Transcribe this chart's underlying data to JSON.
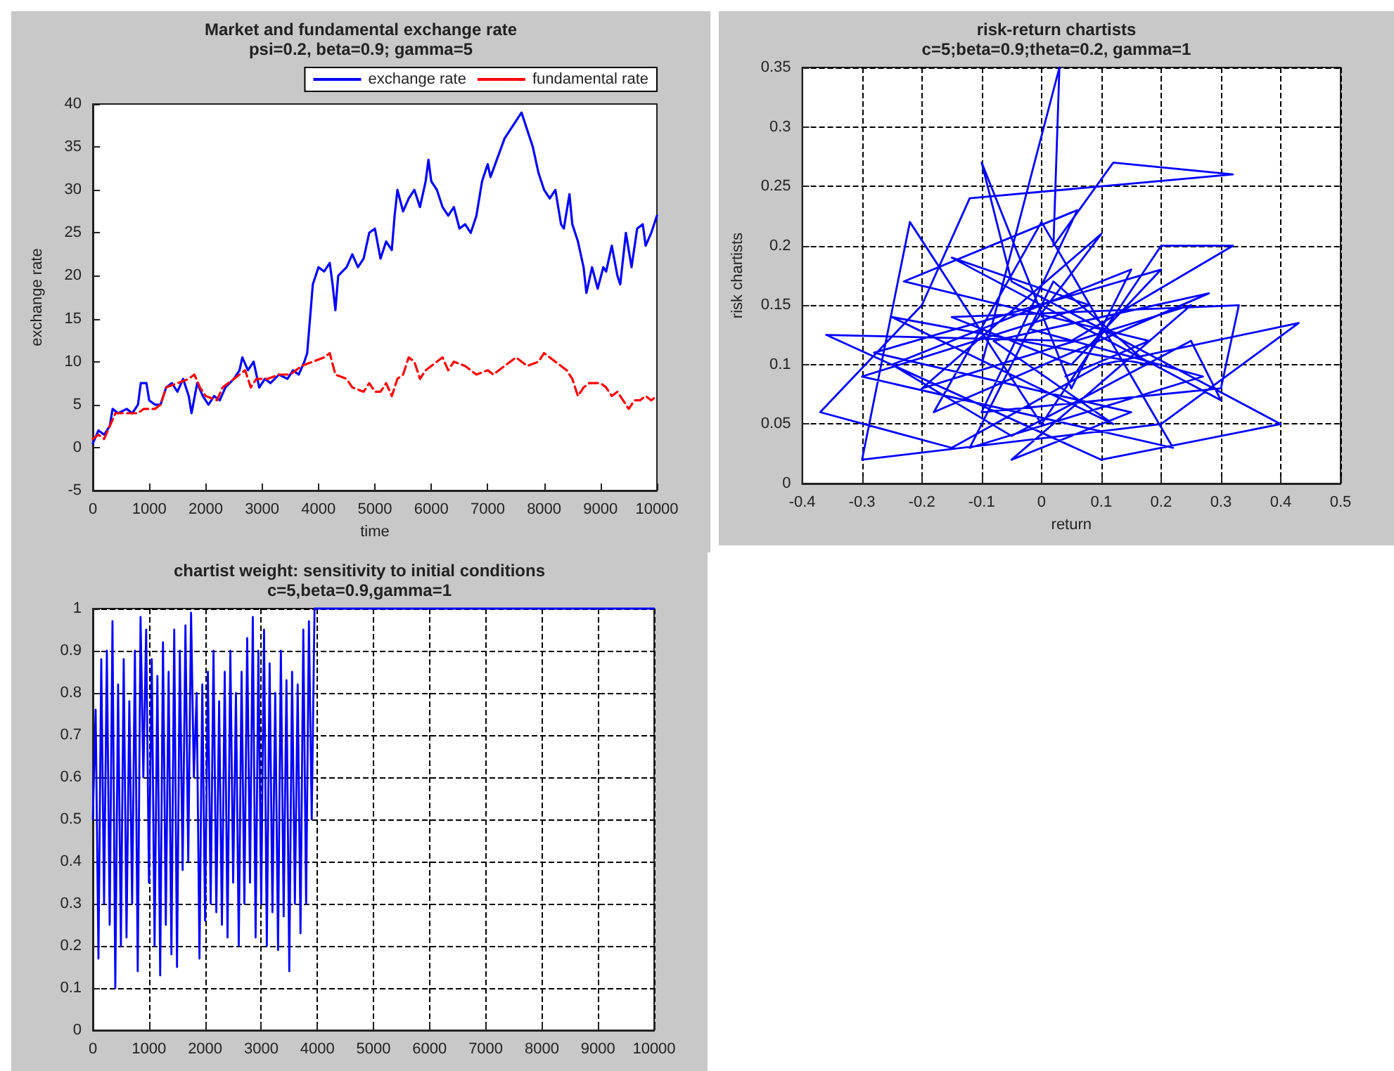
{
  "chart_data": [
    {
      "type": "line",
      "title": "Market and fundamental exchange rate",
      "subtitle": "psi=0.2, beta=0.9; gamma=5",
      "xlabel": "time",
      "ylabel": "exchange rate",
      "xlim": [
        0,
        10000
      ],
      "ylim": [
        -5,
        40
      ],
      "xticks": [
        0,
        1000,
        2000,
        3000,
        4000,
        5000,
        6000,
        7000,
        8000,
        9000,
        10000
      ],
      "yticks": [
        -5,
        0,
        5,
        10,
        15,
        20,
        25,
        30,
        35,
        40
      ],
      "legend": "top right",
      "marker": "none",
      "line_style": "solid",
      "series": [
        {
          "name": "exchange rate",
          "color": "#0000ff",
          "x": [
            0,
            100,
            200,
            300,
            350,
            450,
            600,
            700,
            800,
            850,
            950,
            1000,
            1100,
            1200,
            1300,
            1400,
            1500,
            1600,
            1700,
            1750,
            1850,
            1950,
            2050,
            2150,
            2250,
            2350,
            2500,
            2600,
            2650,
            2750,
            2850,
            2950,
            3050,
            3150,
            3300,
            3450,
            3550,
            3650,
            3750,
            3800,
            3850,
            3900,
            4000,
            4100,
            4200,
            4250,
            4300,
            4350,
            4500,
            4600,
            4700,
            4800,
            4900,
            5000,
            5100,
            5200,
            5300,
            5350,
            5400,
            5500,
            5600,
            5700,
            5800,
            5900,
            5950,
            6000,
            6100,
            6200,
            6300,
            6400,
            6500,
            6600,
            6700,
            6800,
            6900,
            7000,
            7050,
            7300,
            7600,
            7700,
            7800,
            7900,
            8000,
            8100,
            8200,
            8300,
            8350,
            8450,
            8500,
            8600,
            8700,
            8750,
            8850,
            8950,
            9050,
            9100,
            9200,
            9300,
            9350,
            9450,
            9550,
            9650,
            9750,
            9800,
            9900,
            10000
          ],
          "values": [
            0.5,
            2,
            1.5,
            2.5,
            4.5,
            4,
            4.5,
            4,
            5,
            7.5,
            7.5,
            5.5,
            5,
            5,
            7,
            7.5,
            6.5,
            8,
            6,
            4,
            7.5,
            6,
            5,
            6,
            5.5,
            7,
            8,
            9,
            10.5,
            9,
            10,
            7,
            8,
            7.5,
            8.5,
            8,
            9,
            8.5,
            10,
            11,
            15,
            19,
            21,
            20.5,
            21.5,
            19,
            16,
            20,
            21,
            22.5,
            21,
            22,
            25,
            25.5,
            22,
            24,
            23,
            27,
            30,
            27.5,
            29,
            30,
            28,
            31,
            33.5,
            31,
            30,
            28,
            27,
            28,
            25.5,
            26,
            25,
            27,
            31,
            33,
            31.5,
            36,
            39,
            37,
            35,
            32,
            30,
            29,
            30,
            26,
            25.5,
            29.5,
            26,
            24,
            21,
            18,
            21,
            18.5,
            21,
            20.5,
            23.5,
            20,
            19,
            25,
            21,
            25.5,
            26,
            23.5,
            25,
            27
          ]
        },
        {
          "name": "fundamental rate",
          "color": "#ff0000",
          "line_style": "dashed",
          "x": [
            0,
            100,
            200,
            300,
            400,
            600,
            800,
            900,
            1000,
            1100,
            1200,
            1300,
            1500,
            1700,
            1800,
            1900,
            2000,
            2200,
            2300,
            2500,
            2700,
            2800,
            2900,
            3100,
            3300,
            3500,
            3700,
            3900,
            4100,
            4200,
            4300,
            4500,
            4600,
            4800,
            4900,
            5000,
            5100,
            5200,
            5300,
            5400,
            5500,
            5600,
            5700,
            5800,
            5900,
            6000,
            6200,
            6300,
            6400,
            6600,
            6800,
            7000,
            7100,
            7300,
            7500,
            7700,
            7900,
            8000,
            8200,
            8400,
            8500,
            8600,
            8700,
            8800,
            9000,
            9100,
            9200,
            9300,
            9400,
            9500,
            9600,
            9700,
            9800,
            9900,
            10000
          ],
          "values": [
            1,
            1.5,
            1,
            2.5,
            4,
            4,
            4,
            4.5,
            4.5,
            4.5,
            5,
            7,
            7.5,
            8,
            8.5,
            7,
            6,
            5.5,
            7,
            8,
            9,
            7,
            8,
            8,
            8.5,
            8.5,
            9.5,
            10,
            10.5,
            11,
            8.5,
            8,
            7,
            6.5,
            7.5,
            6.5,
            6.5,
            7.5,
            6,
            8,
            8.5,
            10.5,
            10,
            8,
            9,
            9.5,
            10.5,
            9,
            10,
            9.5,
            8.5,
            9,
            8.5,
            9.5,
            10.5,
            9.5,
            10,
            11,
            10,
            9,
            8,
            6,
            7,
            7.5,
            7.5,
            7,
            6,
            6.5,
            5.5,
            4.5,
            5.5,
            5.5,
            6,
            5.5,
            6
          ]
        }
      ]
    },
    {
      "type": "line",
      "title": "risk-return chartists",
      "subtitle": "c=5;beta=0.9;theta=0.2, gamma=1",
      "xlabel": "return",
      "ylabel": "risk chartists",
      "xlim": [
        -0.4,
        0.5
      ],
      "ylim": [
        0,
        0.35
      ],
      "xticks": [
        -0.4,
        -0.3,
        -0.2,
        -0.1,
        0,
        0.1,
        0.2,
        0.3,
        0.4,
        0.5
      ],
      "yticks": [
        0,
        0.05,
        0.1,
        0.15,
        0.2,
        0.25,
        0.3,
        0.35
      ],
      "grid": true,
      "marker": "none",
      "line_style": "solid",
      "series": [
        {
          "color": "#0000ff",
          "x": [
            -0.1,
            0.03,
            0.02,
            0.12,
            0.32,
            -0.12,
            -0.2,
            -0.37,
            -0.15,
            0.1,
            0.43,
            0.2,
            -0.3,
            -0.22,
            0,
            0.2,
            0.32,
            0.05,
            -0.36,
            0.1,
            0.4,
            -0.05,
            -0.1,
            0.05,
            0.15,
            -0.25,
            -0.05,
            0.25,
            0.3,
            -0.15,
            0.08,
            -0.3,
            0.22,
            0,
            -0.18,
            0.28,
            -0.08,
            0.12,
            -0.25,
            0.18,
            0.02,
            -0.12,
            0.27,
            -0.02,
            0.1,
            -0.2,
            0.25,
            -0.05,
            0.15,
            -0.28,
            0.2,
            0.05,
            -0.15,
            0.33,
            0.3,
            -0.1,
            0.06,
            -0.23,
            0.18,
            0.04
          ],
          "values": [
            0.1,
            0.35,
            0.2,
            0.27,
            0.26,
            0.24,
            0.15,
            0.06,
            0.03,
            0.1,
            0.135,
            0.05,
            0.02,
            0.22,
            0.05,
            0.2,
            0.2,
            0.12,
            0.125,
            0.02,
            0.05,
            0.17,
            0.27,
            0.08,
            0.18,
            0.1,
            0.04,
            0.12,
            0.07,
            0.19,
            0.15,
            0.09,
            0.03,
            0.22,
            0.06,
            0.16,
            0.12,
            0.05,
            0.14,
            0.1,
            0.17,
            0.03,
            0.09,
            0.13,
            0.21,
            0.08,
            0.15,
            0.02,
            0.06,
            0.11,
            0.18,
            0.1,
            0.14,
            0.15,
            0.08,
            0.06,
            0.23,
            0.17,
            0.12,
            0.09
          ]
        }
      ]
    },
    {
      "type": "line",
      "title": "chartist weight: sensitivity to initial conditions",
      "subtitle": "c=5,beta=0.9,gamma=1",
      "xlim": [
        0,
        10000
      ],
      "ylim": [
        0,
        1
      ],
      "xticks": [
        0,
        1000,
        2000,
        3000,
        4000,
        5000,
        6000,
        7000,
        8000,
        9000,
        10000
      ],
      "yticks": [
        0,
        0.1,
        0.2,
        0.3,
        0.4,
        0.5,
        0.6,
        0.7,
        0.8,
        0.9,
        1
      ],
      "grid": true,
      "marker": "none",
      "line_style": "solid",
      "series": [
        {
          "color": "#0000ff",
          "x": [
            0,
            50,
            100,
            150,
            200,
            250,
            300,
            350,
            400,
            450,
            500,
            550,
            600,
            650,
            700,
            750,
            800,
            850,
            900,
            950,
            1000,
            1050,
            1100,
            1150,
            1200,
            1250,
            1300,
            1350,
            1400,
            1450,
            1500,
            1550,
            1600,
            1650,
            1700,
            1750,
            1800,
            1850,
            1900,
            1950,
            2000,
            2050,
            2100,
            2150,
            2200,
            2250,
            2300,
            2350,
            2400,
            2450,
            2500,
            2550,
            2600,
            2650,
            2700,
            2750,
            2800,
            2850,
            2900,
            2950,
            3000,
            3050,
            3100,
            3150,
            3200,
            3250,
            3300,
            3350,
            3400,
            3450,
            3500,
            3550,
            3600,
            3650,
            3700,
            3750,
            3800,
            3850,
            3900,
            3950,
            10000
          ],
          "values": [
            0.5,
            0.76,
            0.17,
            0.88,
            0.3,
            0.9,
            0.25,
            0.97,
            0.1,
            0.82,
            0.2,
            0.88,
            0.22,
            0.78,
            0.3,
            0.9,
            0.14,
            0.98,
            0.6,
            0.95,
            0.35,
            0.88,
            0.2,
            0.84,
            0.13,
            0.92,
            0.25,
            0.85,
            0.18,
            0.95,
            0.15,
            0.9,
            0.38,
            0.96,
            0.4,
            0.99,
            0.6,
            0.8,
            0.17,
            0.82,
            0.26,
            0.85,
            0.3,
            0.9,
            0.28,
            0.78,
            0.25,
            0.85,
            0.22,
            0.9,
            0.35,
            0.8,
            0.2,
            0.85,
            0.3,
            0.93,
            0.35,
            0.98,
            0.22,
            0.9,
            0.3,
            0.95,
            0.2,
            0.87,
            0.28,
            0.8,
            0.19,
            0.9,
            0.27,
            0.83,
            0.14,
            0.85,
            0.3,
            0.82,
            0.23,
            0.95,
            0.3,
            0.97,
            0.5,
            1,
            1
          ]
        }
      ]
    }
  ]
}
